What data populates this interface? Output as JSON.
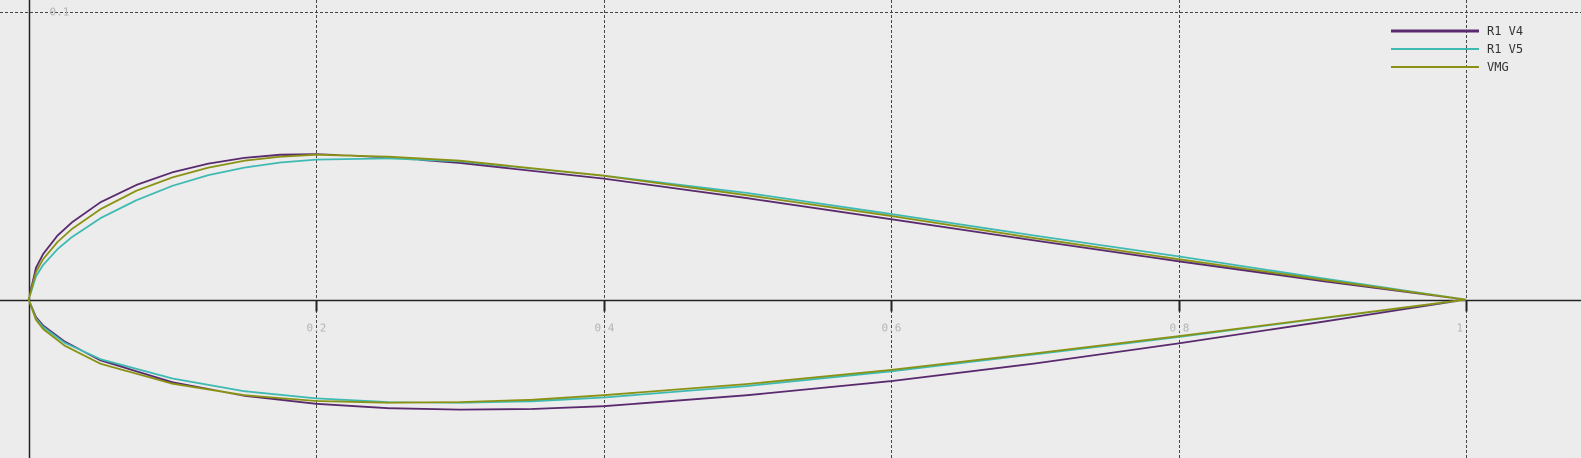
{
  "chart_data": {
    "type": "line",
    "title": "",
    "xlabel": "",
    "ylabel": "",
    "xlim": [
      -0.02,
      1.08
    ],
    "ylim": [
      -0.055,
      0.104
    ],
    "grid": true,
    "legend_position": "top-right",
    "x_ticks": [
      {
        "value": 0.2,
        "label": "0.2"
      },
      {
        "value": 0.4,
        "label": "0.4"
      },
      {
        "value": 0.6,
        "label": "0.6"
      },
      {
        "value": 0.8,
        "label": "0.8"
      },
      {
        "value": 1.0,
        "label": "1"
      }
    ],
    "y_ticks": [
      {
        "value": 0.1,
        "label": "0.1"
      }
    ],
    "series": [
      {
        "name": "R1 V4",
        "color": "#5a2a6e",
        "upper": [
          [
            0,
            0
          ],
          [
            0.005,
            0.011
          ],
          [
            0.01,
            0.0158
          ],
          [
            0.02,
            0.0222
          ],
          [
            0.03,
            0.0268
          ],
          [
            0.05,
            0.0338
          ],
          [
            0.075,
            0.0398
          ],
          [
            0.1,
            0.0442
          ],
          [
            0.125,
            0.0472
          ],
          [
            0.15,
            0.0492
          ],
          [
            0.175,
            0.0503
          ],
          [
            0.2,
            0.0505
          ],
          [
            0.25,
            0.0494
          ],
          [
            0.3,
            0.0474
          ],
          [
            0.4,
            0.042
          ],
          [
            0.5,
            0.0352
          ],
          [
            0.6,
            0.0279
          ],
          [
            0.7,
            0.0205
          ],
          [
            0.8,
            0.0133
          ],
          [
            0.9,
            0.0064
          ],
          [
            1.0,
            0
          ]
        ],
        "lower": [
          [
            0,
            0
          ],
          [
            0.005,
            -0.006
          ],
          [
            0.01,
            -0.009
          ],
          [
            0.025,
            -0.0146
          ],
          [
            0.05,
            -0.0211
          ],
          [
            0.1,
            -0.0287
          ],
          [
            0.15,
            -0.0334
          ],
          [
            0.2,
            -0.0362
          ],
          [
            0.25,
            -0.0377
          ],
          [
            0.3,
            -0.0382
          ],
          [
            0.35,
            -0.038
          ],
          [
            0.4,
            -0.037
          ],
          [
            0.5,
            -0.0332
          ],
          [
            0.6,
            -0.0283
          ],
          [
            0.7,
            -0.0222
          ],
          [
            0.8,
            -0.0152
          ],
          [
            0.9,
            -0.0077
          ],
          [
            1.0,
            0
          ]
        ]
      },
      {
        "name": "R1 V5",
        "color": "#3fbab2",
        "upper": [
          [
            0,
            0
          ],
          [
            0.005,
            0.008
          ],
          [
            0.01,
            0.012
          ],
          [
            0.02,
            0.0175
          ],
          [
            0.03,
            0.0217
          ],
          [
            0.05,
            0.0283
          ],
          [
            0.075,
            0.0345
          ],
          [
            0.1,
            0.0395
          ],
          [
            0.125,
            0.0432
          ],
          [
            0.15,
            0.0458
          ],
          [
            0.175,
            0.0476
          ],
          [
            0.2,
            0.0486
          ],
          [
            0.25,
            0.049
          ],
          [
            0.3,
            0.048
          ],
          [
            0.4,
            0.043
          ],
          [
            0.5,
            0.037
          ],
          [
            0.6,
            0.0297
          ],
          [
            0.7,
            0.0222
          ],
          [
            0.8,
            0.015
          ],
          [
            0.9,
            0.0074
          ],
          [
            1.0,
            0
          ]
        ],
        "lower": [
          [
            0,
            0
          ],
          [
            0.005,
            -0.0065
          ],
          [
            0.01,
            -0.0095
          ],
          [
            0.025,
            -0.015
          ],
          [
            0.05,
            -0.0207
          ],
          [
            0.1,
            -0.0274
          ],
          [
            0.15,
            -0.0318
          ],
          [
            0.2,
            -0.0343
          ],
          [
            0.25,
            -0.0356
          ],
          [
            0.3,
            -0.0358
          ],
          [
            0.35,
            -0.0353
          ],
          [
            0.4,
            -0.034
          ],
          [
            0.5,
            -0.03
          ],
          [
            0.6,
            -0.0249
          ],
          [
            0.7,
            -0.019
          ],
          [
            0.8,
            -0.013
          ],
          [
            0.9,
            -0.0065
          ],
          [
            1.0,
            0
          ]
        ]
      },
      {
        "name": "VMG",
        "color": "#8b9213",
        "upper": [
          [
            0,
            0
          ],
          [
            0.005,
            0.0095
          ],
          [
            0.01,
            0.014
          ],
          [
            0.02,
            0.02
          ],
          [
            0.03,
            0.0245
          ],
          [
            0.05,
            0.0314
          ],
          [
            0.075,
            0.0378
          ],
          [
            0.1,
            0.0424
          ],
          [
            0.125,
            0.0458
          ],
          [
            0.15,
            0.0482
          ],
          [
            0.175,
            0.0496
          ],
          [
            0.2,
            0.0503
          ],
          [
            0.25,
            0.0496
          ],
          [
            0.3,
            0.0482
          ],
          [
            0.4,
            0.043
          ],
          [
            0.5,
            0.0362
          ],
          [
            0.6,
            0.029
          ],
          [
            0.7,
            0.0213
          ],
          [
            0.8,
            0.014
          ],
          [
            0.9,
            0.0069
          ],
          [
            1.0,
            0
          ]
        ],
        "lower": [
          [
            0,
            0
          ],
          [
            0.005,
            -0.007
          ],
          [
            0.01,
            -0.0102
          ],
          [
            0.025,
            -0.016
          ],
          [
            0.05,
            -0.0223
          ],
          [
            0.1,
            -0.0292
          ],
          [
            0.15,
            -0.0332
          ],
          [
            0.2,
            -0.0352
          ],
          [
            0.25,
            -0.0358
          ],
          [
            0.3,
            -0.0356
          ],
          [
            0.35,
            -0.0348
          ],
          [
            0.4,
            -0.0332
          ],
          [
            0.5,
            -0.0293
          ],
          [
            0.6,
            -0.0244
          ],
          [
            0.7,
            -0.0187
          ],
          [
            0.8,
            -0.0127
          ],
          [
            0.9,
            -0.0064
          ],
          [
            1.0,
            0
          ]
        ]
      }
    ]
  }
}
